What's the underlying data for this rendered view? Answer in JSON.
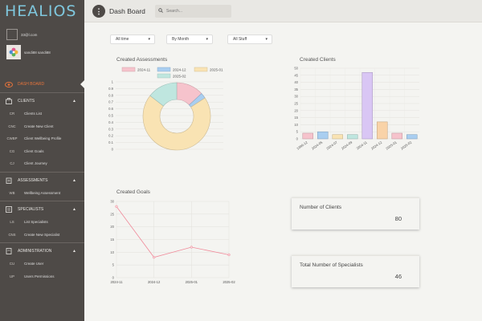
{
  "app": {
    "logo": "HEALIOS"
  },
  "user": {
    "email": "33@l.com",
    "name": "sandi88 sandi88"
  },
  "header": {
    "title": "Dash Board",
    "search_placeholder": "Search..."
  },
  "nav": {
    "dashboard": "DASH BOARD",
    "clients": {
      "label": "CLIENTS",
      "items": [
        {
          "abbr": "CR",
          "label": "Clients List"
        },
        {
          "abbr": "CNC",
          "label": "Create New Client"
        },
        {
          "abbr": "CWBP",
          "label": "Client Wellbeing Profile"
        },
        {
          "abbr": "CG",
          "label": "Client Goals"
        },
        {
          "abbr": "CJ",
          "label": "Client Journey"
        }
      ]
    },
    "assessments": {
      "label": "ASSESSMENTS",
      "items": [
        {
          "abbr": "WB",
          "label": "Wellbeing Assessment"
        }
      ]
    },
    "specialists": {
      "label": "SPECIALISTS",
      "items": [
        {
          "abbr": "LS",
          "label": "List Specialists"
        },
        {
          "abbr": "CNS",
          "label": "Create New Specialist"
        }
      ]
    },
    "administration": {
      "label": "ADMINISTRATION",
      "items": [
        {
          "abbr": "CU",
          "label": "Create User"
        },
        {
          "abbr": "UP",
          "label": "Users Permissions"
        }
      ]
    }
  },
  "filters": {
    "time": "All time",
    "group": "By Month",
    "stuff": "All Stuff"
  },
  "colors": {
    "accent": "#e8743b",
    "sidebar": "#4e4a47",
    "logo": "#7fc7dd"
  },
  "chart_data": [
    {
      "type": "pie",
      "title": "Created Assessments",
      "legend": "top",
      "categories": [
        "2024-11",
        "2024-12",
        "2025-01",
        "2025-02"
      ],
      "values": [
        10,
        2,
        53,
        11
      ],
      "colors": [
        "#f6c3cc",
        "#a9cef0",
        "#f9e3b3",
        "#bfe6df"
      ]
    },
    {
      "type": "bar",
      "title": "Created Clients",
      "categories": [
        "1996-12",
        "2024-05",
        "2024-07",
        "2024-09",
        "2024-11",
        "2024-12",
        "2025-01",
        "2025-02"
      ],
      "values": [
        4,
        5,
        3,
        3,
        47,
        12,
        4,
        3
      ],
      "colors": [
        "#f6c3cc",
        "#a9cef0",
        "#f9e3b3",
        "#bfe6df",
        "#d9c6f4",
        "#f9d3a8",
        "#f6c3cc",
        "#a9cef0"
      ],
      "ylim": [
        0,
        50
      ],
      "yticks": [
        0,
        5,
        10,
        15,
        20,
        25,
        30,
        35,
        40,
        45,
        50
      ]
    },
    {
      "type": "line",
      "title": "Created Goals",
      "categories": [
        "2024-11",
        "2024-12",
        "2025-01",
        "2025-02"
      ],
      "values": [
        28,
        8,
        12,
        9
      ],
      "color": "#f08a9a",
      "ylim": [
        0,
        30
      ],
      "yticks": [
        0,
        5,
        10,
        15,
        20,
        25,
        30
      ]
    }
  ],
  "pie_ticks": [
    "1",
    "0.9",
    "0.8",
    "0.7",
    "0.6",
    "0.5",
    "0.4",
    "0.3",
    "0.2",
    "0.1",
    "0"
  ],
  "stats": {
    "clients": {
      "label": "Number of Clients",
      "value": "80"
    },
    "specialists": {
      "label": "Total Number of Specialists",
      "value": "46"
    }
  }
}
